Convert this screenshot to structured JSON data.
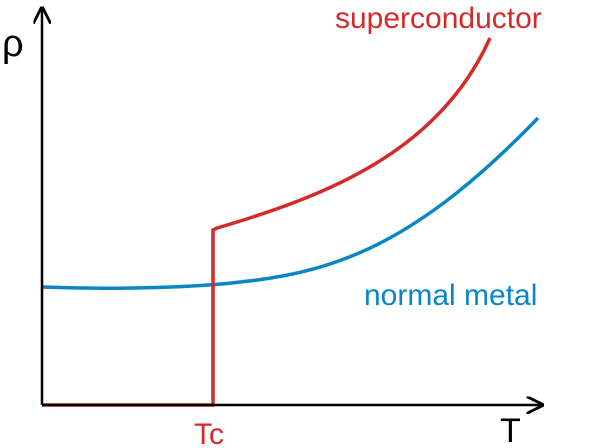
{
  "axes": {
    "y_label": "ρ",
    "x_label": "T"
  },
  "markers": {
    "critical_temperature": "Tc"
  },
  "curves": {
    "superconductor": {
      "label": "superconductor"
    },
    "normal_metal": {
      "label": "normal metal"
    }
  }
}
